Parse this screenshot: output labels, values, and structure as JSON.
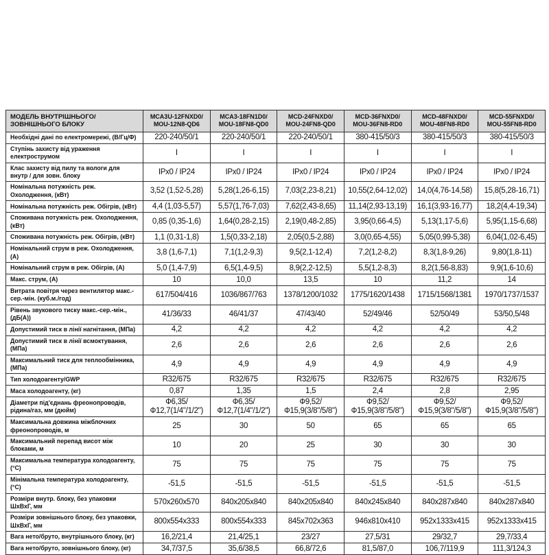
{
  "table": {
    "colors": {
      "header_bg": "#d9d9d9",
      "border": "#2e2e2e"
    },
    "model_header_label": "МОДЕЛЬ ВНУТРІШНЬОГО/ЗОВНІШНЬОГО БЛОКУ",
    "columns": [
      "MCA3U-12FNXD0/ MOU-12N8-QD6",
      "MCA3-18FN1D0/ MOU-18FN8-QD0",
      "MCD-24FNXD0/ MOU-24FN8-QD0",
      "MCD-36FNXD0/ MOU-36FN8-RD0",
      "MCD-48FNXD0/ MOU-48FN8-RD0",
      "MCD-55FNXD0/ MOU-55FN8-RD0"
    ],
    "rows": [
      {
        "label": "Необхідні дані по електромережі, (В/Гц/Ф)",
        "values": [
          "220-240/50/1",
          "220-240/50/1",
          "220-240/50/1",
          "380-415/50/3",
          "380-415/50/3",
          "380-415/50/3"
        ]
      },
      {
        "label": "Ступінь захисту від ураження електрострумом",
        "values": [
          "I",
          "I",
          "I",
          "I",
          "I",
          "I"
        ]
      },
      {
        "label": "Клас захисту від пилу та вологи  для внутр / для зовн. блоку",
        "values": [
          "IPx0 / IP24",
          "IPx0 / IP24",
          "IPx0 / IP24",
          "IPx0 / IP24",
          "IPx0 / IP24",
          "IPx0 / IP24"
        ]
      },
      {
        "label": "Номінальна потужність реж. Охолодження, (кВт)",
        "values": [
          "3,52 (1,52-5,28)",
          "5,28(1,26-6,15)",
          "7,03(2,23-8,21)",
          "10,55(2,64-12,02)",
          "14,0(4,76-14,58)",
          "15,8(5,28-16,71)"
        ]
      },
      {
        "label": "Номінальна потужність реж. Обігрів, (кВт)",
        "values": [
          "4,4 (1,03-5,57)",
          "5,57(1,76-7,03)",
          "7,62(2,43-8,65)",
          "11,14(2,93-13,19)",
          "16,1(3,93-16,77)",
          "18,2(4,4-19,34)"
        ]
      },
      {
        "label": "Споживана потужність реж. Охолодження, (кВт)",
        "values": [
          "0,85 (0,35-1,6)",
          "1,64(0,28-2,15)",
          "2,19(0,48-2,85)",
          "3,95(0,66-4,5)",
          "5,13(1,17-5,6)",
          "5,95(1,15-6,68)"
        ]
      },
      {
        "label": "Споживана потужність реж. Обігрів, (кВт)",
        "values": [
          "1,1 (0,31-1,8)",
          "1,5(0,33-2,18)",
          "2,05(0,5-2,88)",
          "3,0(0,65-4,55)",
          "5,05(0,99-5,38)",
          "6,04(1,02-6,45)"
        ]
      },
      {
        "label": "Номінальний струм в реж. Охолодження, (А)",
        "values": [
          "3,8 (1,6-7,1)",
          "7,1(1,2-9,3)",
          "9,5(2,1-12,4)",
          "7,2(1,2-8,2)",
          "8,3(1,8-9,26)",
          "9,80(1,8-11)"
        ]
      },
      {
        "label": "Номінальний струм в реж. Обігрів, (А)",
        "values": [
          "5,0 (1,4-7,9)",
          "6,5(1,4-9,5)",
          "8,9(2,2-12,5)",
          "5,5(1,2-8,3)",
          "8,2(1,56-8,83)",
          "9,9(1,6-10,6)"
        ]
      },
      {
        "label": "Макс. струм, (А)",
        "values": [
          "10",
          "10,0",
          "13,5",
          "10",
          "11,2",
          "14"
        ]
      },
      {
        "label": "Витрата повітря через вентилятор макс.-сер.-мін. (куб.м./год)",
        "values": [
          "617/504/416",
          "1036/867/763",
          "1378/1200/1032",
          "1775/1620/1438",
          "1715/1568/1381",
          "1970/1737/1537"
        ]
      },
      {
        "label": "Рівень звукового тиску  макс.-сер.-мін., (дБ(А))",
        "values": [
          "41/36/33",
          "46/41/37",
          "47/43/40",
          "52/49/46",
          "52/50/49",
          "53/50,5/48"
        ]
      },
      {
        "label": "Допустимий тиск в лінії нагнітання, (МПа)",
        "values": [
          "4,2",
          "4,2",
          "4,2",
          "4,2",
          "4,2",
          "4,2"
        ]
      },
      {
        "label": "Допустимий тиск в лінії всмоктування, (МПа)",
        "values": [
          "2,6",
          "2,6",
          "2,6",
          "2,6",
          "2,6",
          "2,6"
        ]
      },
      {
        "label": "Максимальний тиск для теплообмінника, (МПа)",
        "values": [
          "4,9",
          "4,9",
          "4,9",
          "4,9",
          "4,9",
          "4,9"
        ]
      },
      {
        "label": "Тип холодоагенту/GWP",
        "values": [
          "R32/675",
          "R32/675",
          "R32/675",
          "R32/675",
          "R32/675",
          "R32/675"
        ]
      },
      {
        "label": "Маса холодоагенту, (кг)",
        "values": [
          "0,87",
          "1,35",
          "1,5",
          "2,4",
          "2,8",
          "2,95"
        ]
      },
      {
        "label": "Діаметри під'єднань фреонопроводів, рідина/газ, мм (дюйм)",
        "values": [
          "Ф6,35/\nФ12,7(1/4\"/1/2\")",
          "Ф6,35/\nФ12,7(1/4\"/1/2\")",
          "Ф9,52/Ф15,9(3/8\"/5/8\")",
          "Ф9,52/Ф15,9(3/8\"/5/8\")",
          "Ф9,52/Ф15,9(3/8\"/5/8\")",
          "Ф9,52/Ф15,9(3/8\"/5/8\")"
        ]
      },
      {
        "label": "Максимальна довжина міжблочних фреонопроводів, м",
        "values": [
          "25",
          "30",
          "50",
          "65",
          "65",
          "65"
        ]
      },
      {
        "label": "Максимальний перепад висот між блоками, м",
        "values": [
          "10",
          "20",
          "25",
          "30",
          "30",
          "30"
        ]
      },
      {
        "label": "Максимальна температура холодоагенту, (°С)",
        "values": [
          "75",
          "75",
          "75",
          "75",
          "75",
          "75"
        ]
      },
      {
        "label": "Мінімальна температура холодоагенту, (°С)",
        "values": [
          "-51,5",
          "-51,5",
          "-51,5",
          "-51,5",
          "-51,5",
          "-51,5"
        ]
      },
      {
        "label": "Розміри внутр. блоку, без упаковки ШхВхГ, мм",
        "values": [
          "570x260x570",
          "840x205x840",
          "840x205x840",
          "840x245x840",
          "840x287x840",
          "840x287x840"
        ]
      },
      {
        "label": "Розміри зовнішнього блоку, без упаковки, ШхВхГ, мм",
        "values": [
          "800x554x333",
          "800x554x333",
          "845x702x363",
          "946x810x410",
          "952x1333x415",
          "952x1333x415"
        ]
      },
      {
        "label": "Вага нето/бруто, внутрішнього блоку, (кг)",
        "values": [
          "16,2/21,4",
          "21,4/25,1",
          "23/27",
          "27,5/31",
          "29/32,7",
          "29,7/33,4"
        ]
      },
      {
        "label": "Вага нето/бруто, зовнішнього блоку, (кг)",
        "values": [
          "34,7/37,5",
          "35,6/38,5",
          "66,8/72,6",
          "81,5/87,0",
          "106,7/119,9",
          "111,3/124,3"
        ]
      }
    ]
  }
}
